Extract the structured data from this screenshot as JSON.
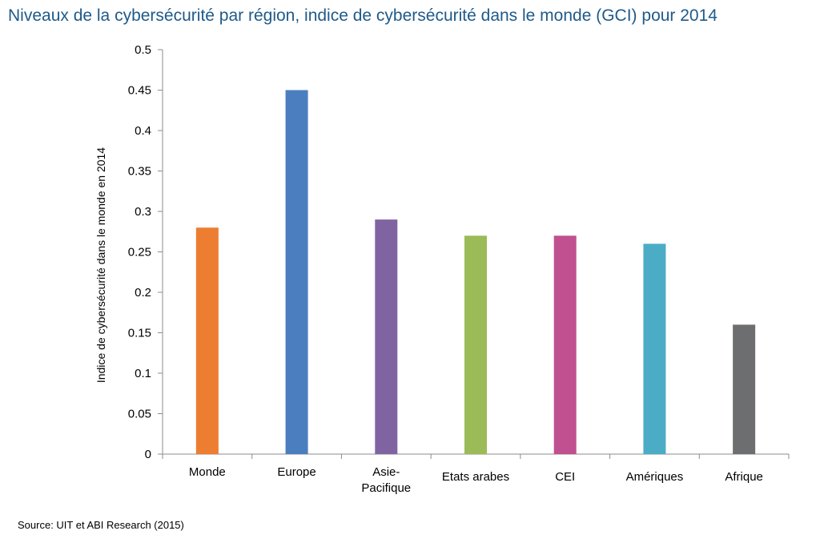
{
  "chart_data": {
    "type": "bar",
    "title": "Niveaux de la cybersécurité par région, indice de cybersécurité dans le monde (GCI) pour 2014",
    "ylabel": "Indice de cybersécurité dans le monde en 2014",
    "xlabel": "",
    "ylim": [
      0,
      0.5
    ],
    "yticks": [
      "0",
      "0.05",
      "0.1",
      "0.15",
      "0.2",
      "0.25",
      "0.3",
      "0.35",
      "0.4",
      "0.45",
      "0.5"
    ],
    "categories": [
      [
        "Monde"
      ],
      [
        "Europe"
      ],
      [
        "Asie-",
        "Pacifique"
      ],
      [
        "Etats arabes"
      ],
      [
        "CEI"
      ],
      [
        "Amériques"
      ],
      [
        "Afrique"
      ]
    ],
    "values": [
      0.28,
      0.45,
      0.29,
      0.27,
      0.27,
      0.26,
      0.16
    ],
    "colors": [
      "#ed7d31",
      "#4a7ebf",
      "#8064a2",
      "#9bbb59",
      "#c0508f",
      "#4bacc6",
      "#6d6e70"
    ],
    "grid": false,
    "legend": "none"
  },
  "source": "Source: UIT et ABI Research (2015)"
}
